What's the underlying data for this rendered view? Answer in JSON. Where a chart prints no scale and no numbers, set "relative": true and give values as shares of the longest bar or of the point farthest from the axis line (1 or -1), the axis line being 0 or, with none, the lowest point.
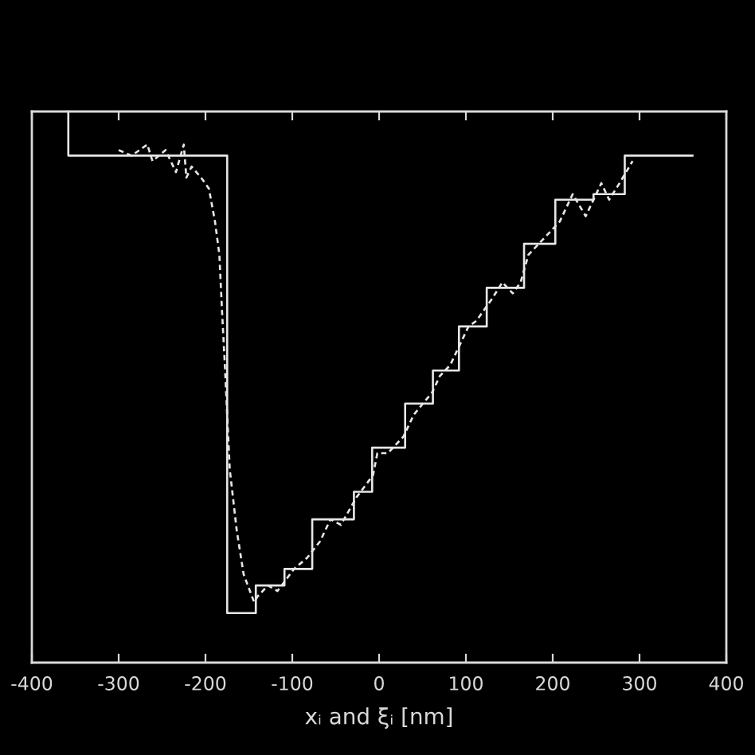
{
  "chart_data": {
    "type": "line",
    "xlabel": "xᵢ and ξᵢ [nm]",
    "xlim": [
      -400,
      400
    ],
    "xticks": [
      -400,
      -300,
      -200,
      -100,
      0,
      100,
      200,
      300,
      400
    ],
    "relative": true,
    "series": [
      {
        "color": "#e6e6e6",
        "line_style": "solid",
        "x": [
          -358,
          -358,
          -175,
          -175,
          -142,
          -142,
          -109,
          -109,
          -77,
          -77,
          -29,
          -29,
          -8,
          -8,
          30,
          30,
          62,
          62,
          92,
          92,
          124,
          124,
          167,
          167,
          203,
          203,
          247,
          247,
          283,
          283,
          361
        ],
        "values": [
          1.0,
          0.92,
          0.92,
          0.09,
          0.09,
          0.14,
          0.14,
          0.17,
          0.17,
          0.26,
          0.26,
          0.31,
          0.31,
          0.39,
          0.39,
          0.47,
          0.47,
          0.53,
          0.53,
          0.61,
          0.61,
          0.68,
          0.68,
          0.76,
          0.76,
          0.84,
          0.84,
          0.85,
          0.85,
          0.92,
          0.92
        ]
      },
      {
        "color": "#e6e6e6",
        "line_style": "dashed",
        "x": [
          -300,
          -285,
          -267,
          -261,
          -246,
          -234,
          -225,
          -222,
          -216,
          -205,
          -196,
          -189,
          -184,
          -181,
          -178,
          -175,
          -172,
          -164,
          -156,
          -144,
          -140,
          -128,
          -117,
          -98,
          -83,
          -68,
          -56,
          -44,
          -26,
          -7,
          -2,
          10,
          28,
          40,
          61,
          70,
          82,
          94,
          103,
          112,
          130,
          142,
          154,
          163,
          172,
          208,
          223,
          238,
          256,
          265,
          277,
          292
        ],
        "values": [
          0.93,
          0.92,
          0.94,
          0.91,
          0.93,
          0.89,
          0.94,
          0.88,
          0.9,
          0.88,
          0.86,
          0.8,
          0.74,
          0.64,
          0.55,
          0.45,
          0.35,
          0.24,
          0.16,
          0.11,
          0.12,
          0.14,
          0.13,
          0.17,
          0.19,
          0.22,
          0.26,
          0.25,
          0.3,
          0.34,
          0.38,
          0.38,
          0.41,
          0.45,
          0.49,
          0.52,
          0.54,
          0.58,
          0.61,
          0.62,
          0.66,
          0.69,
          0.67,
          0.69,
          0.74,
          0.8,
          0.85,
          0.81,
          0.87,
          0.84,
          0.87,
          0.91
        ]
      }
    ]
  }
}
